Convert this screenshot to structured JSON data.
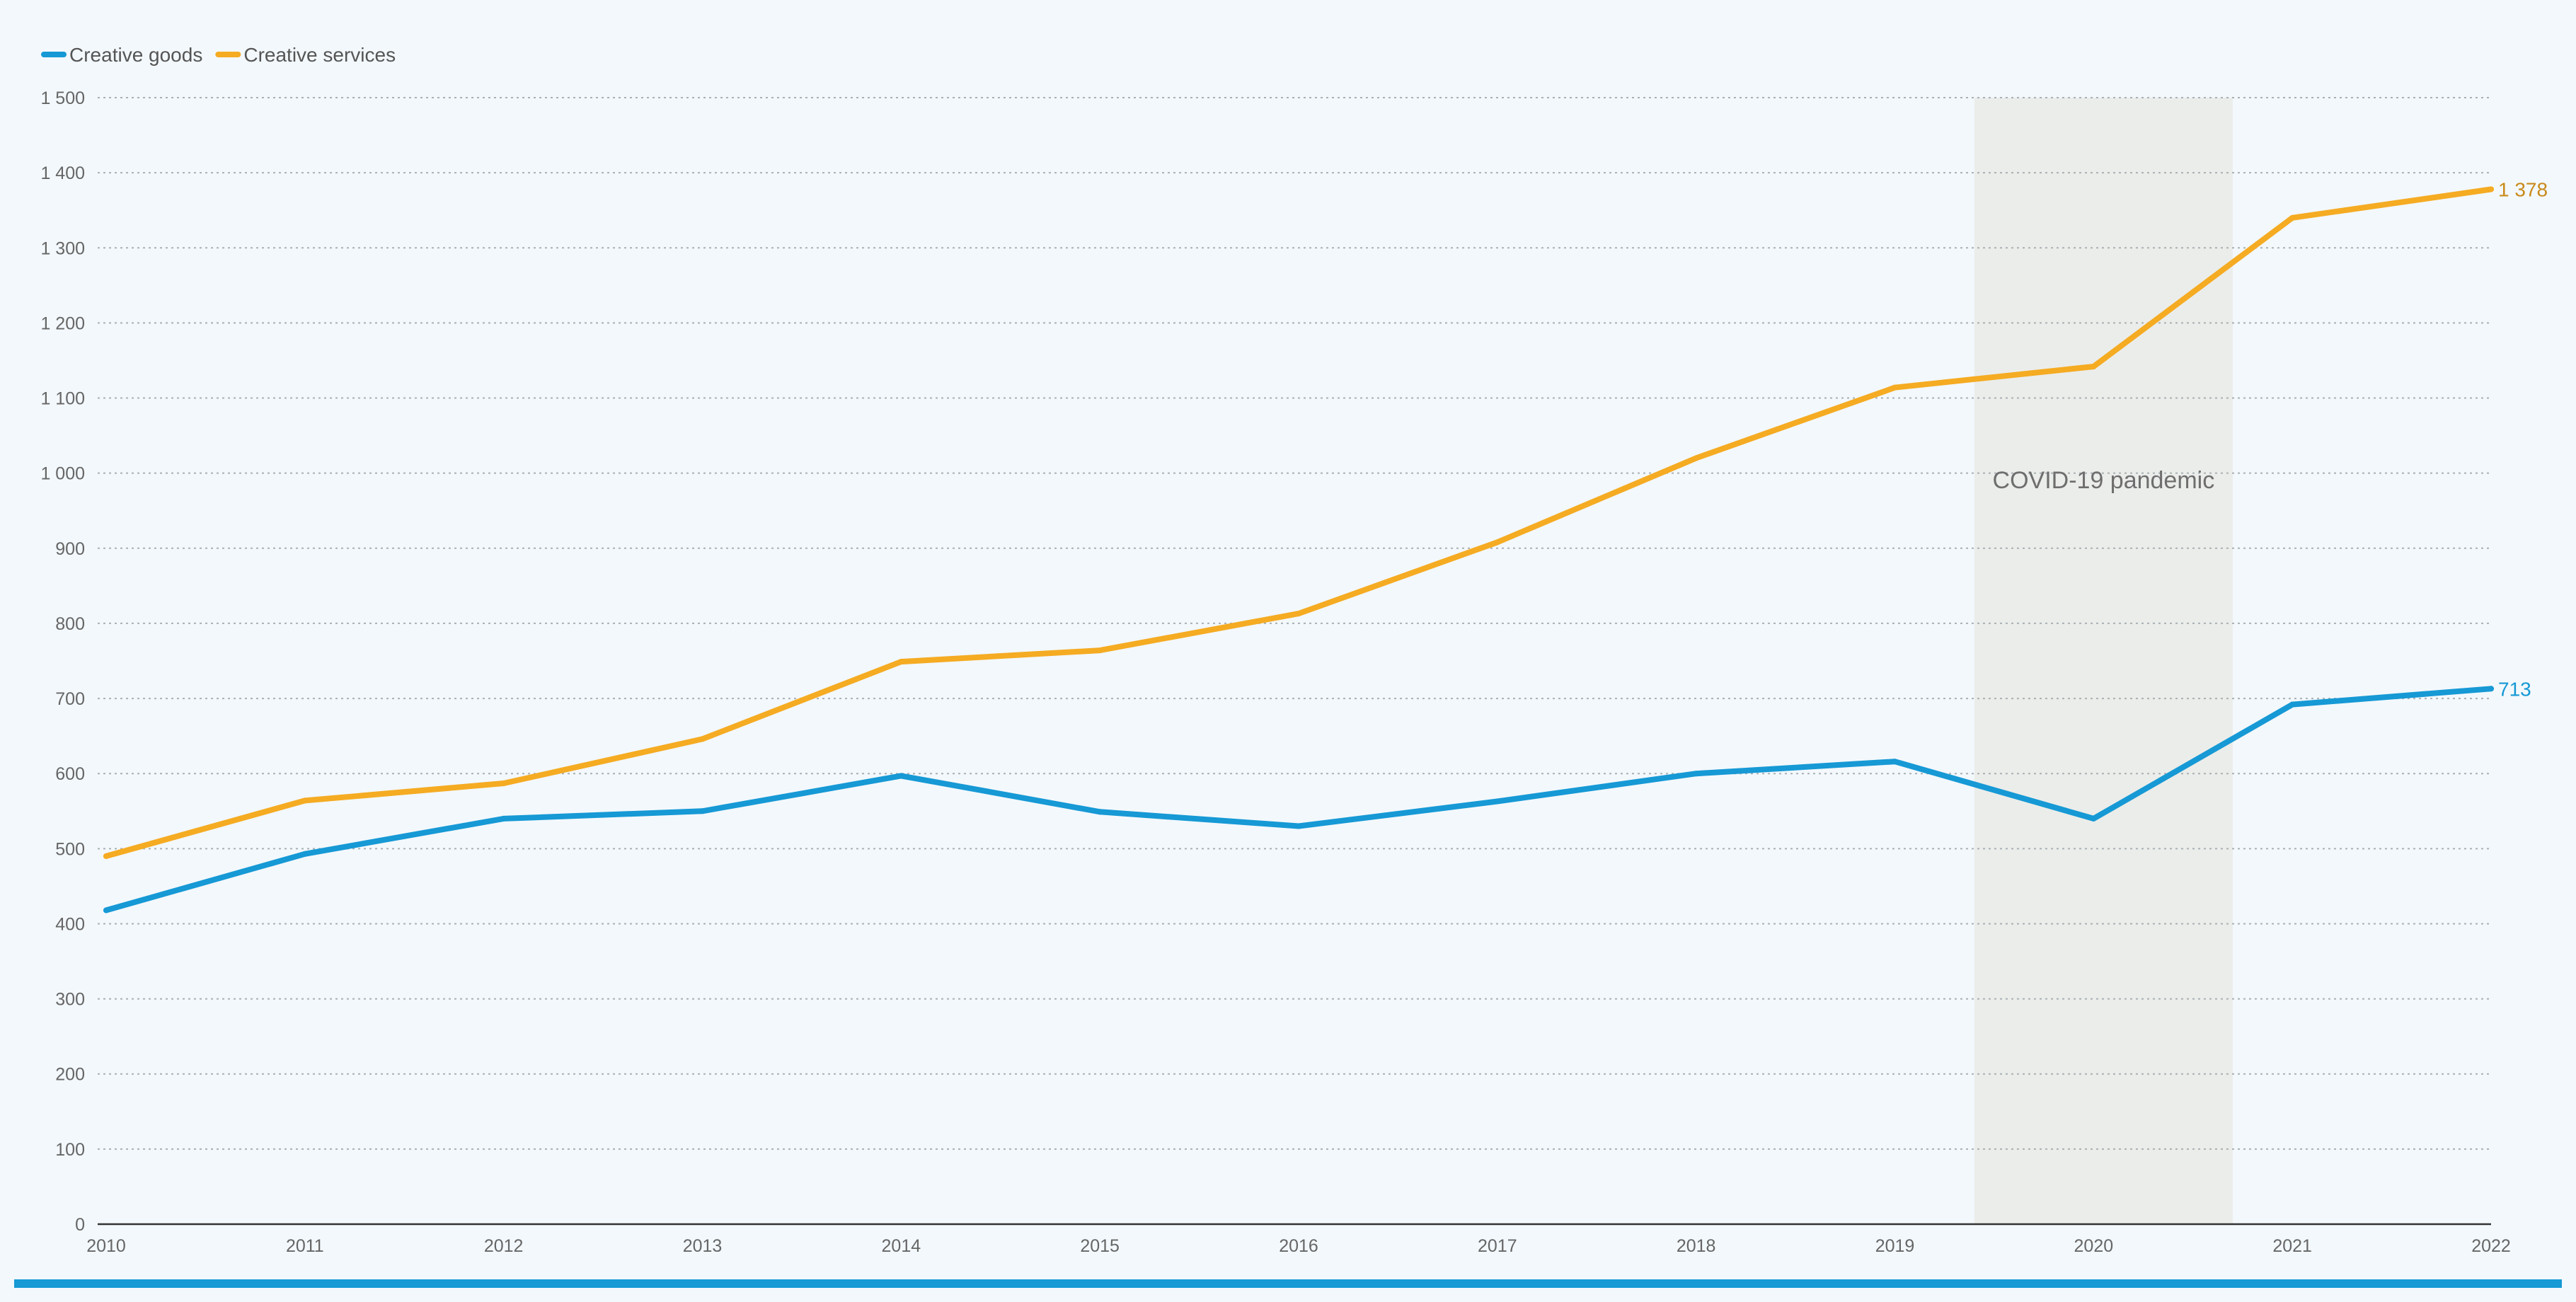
{
  "chart_data": {
    "type": "line",
    "title": "",
    "xlabel": "",
    "ylabel": "",
    "x": [
      2010,
      2011,
      2012,
      2013,
      2014,
      2015,
      2016,
      2017,
      2018,
      2019,
      2020,
      2021,
      2022
    ],
    "x_tick_labels": [
      "2010",
      "2011",
      "2012",
      "2013",
      "2014",
      "2015",
      "2016",
      "2017",
      "2018",
      "2019",
      "2020",
      "2021",
      "2022"
    ],
    "ylim": [
      0,
      1500
    ],
    "y_ticks": [
      0,
      100,
      200,
      300,
      400,
      500,
      600,
      700,
      800,
      900,
      1000,
      1100,
      1200,
      1300,
      1400,
      1500
    ],
    "y_tick_labels": [
      "0",
      "100",
      "200",
      "300",
      "400",
      "500",
      "600",
      "700",
      "800",
      "900",
      "1 000",
      "1 100",
      "1 200",
      "1 300",
      "1 400",
      "1 500"
    ],
    "grid": "horizontal-dotted",
    "legend_position": "top-left",
    "series": [
      {
        "name": "Creative goods",
        "color": "#1699d5",
        "values": [
          418,
          493,
          540,
          550,
          597,
          549,
          530,
          563,
          600,
          616,
          540,
          692,
          713
        ],
        "end_label": "713",
        "end_label_color": "#1699d5"
      },
      {
        "name": "Creative services",
        "color": "#f5ab22",
        "values": [
          490,
          564,
          587,
          646,
          749,
          764,
          813,
          908,
          1020,
          1114,
          1142,
          1340,
          1378
        ],
        "end_label": "1 378",
        "end_label_color": "#c98a1a"
      }
    ],
    "shaded_region": {
      "x_start": 2019.4,
      "x_end": 2020.7,
      "color": "#ebedea",
      "label": "COVID-19 pandemic",
      "label_y": 980
    },
    "bottom_bar_color": "#1699d5"
  }
}
